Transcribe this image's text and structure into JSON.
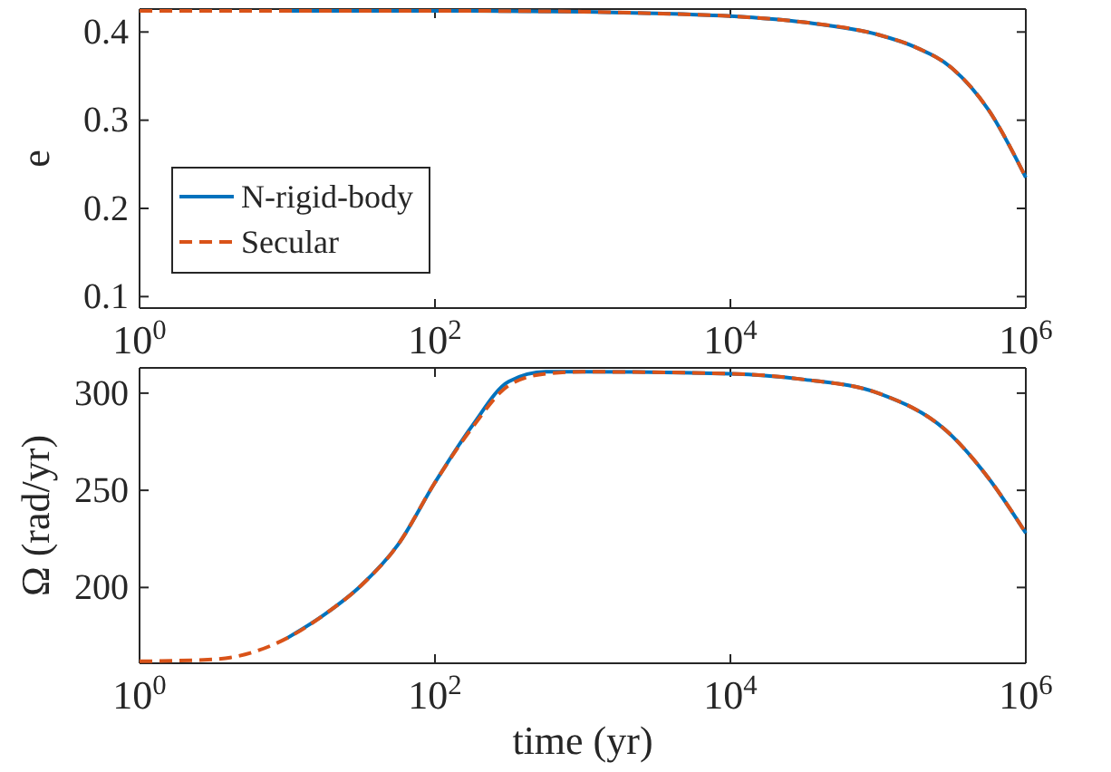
{
  "chart_data": [
    {
      "type": "line",
      "ylabel": "e",
      "log": "x",
      "xlim": [
        1,
        1000000
      ],
      "ylim": [
        0.087,
        0.426
      ],
      "xticks": [
        {
          "value": 1,
          "label": "10$^{0}$"
        },
        {
          "value": 100,
          "label": "10$^{2}$"
        },
        {
          "value": 10000,
          "label": "10$^{4}$"
        },
        {
          "value": 1000000,
          "label": "10$^{6}$"
        }
      ],
      "yticks": [
        0.1,
        0.2,
        0.3,
        0.4
      ],
      "legend": "left",
      "grid": false,
      "series": [
        {
          "name": "N-rigid-body",
          "color": "#0072bd",
          "line_style": "solid",
          "x": [
            10,
            100,
            1000,
            3162,
            10000,
            31623,
            100000,
            177828,
            316228,
            562341,
            1000000
          ],
          "values": [
            0.424,
            0.424,
            0.423,
            0.421,
            0.418,
            0.411,
            0.397,
            0.383,
            0.359,
            0.311,
            0.235
          ]
        },
        {
          "name": "Secular",
          "color": "#d95319",
          "line_style": "dashed",
          "x": [
            1,
            10,
            100,
            1000,
            3162,
            10000,
            31623,
            100000,
            177828,
            316228,
            562341,
            1000000
          ],
          "values": [
            0.424,
            0.424,
            0.424,
            0.423,
            0.421,
            0.418,
            0.411,
            0.397,
            0.383,
            0.359,
            0.311,
            0.235
          ]
        }
      ]
    },
    {
      "type": "line",
      "xlabel": "time (yr)",
      "ylabel": "Ω (rad/yr)",
      "log": "x",
      "xlim": [
        1,
        1000000
      ],
      "ylim": [
        161,
        313
      ],
      "xticks": [
        {
          "value": 1,
          "label": "10$^{0}$"
        },
        {
          "value": 100,
          "label": "10$^{2}$"
        },
        {
          "value": 10000,
          "label": "10$^{4}$"
        },
        {
          "value": 1000000,
          "label": "10$^{6}$"
        }
      ],
      "yticks": [
        200,
        250,
        300
      ],
      "grid": false,
      "legend": false,
      "series": [
        {
          "color": "#0072bd",
          "line_style": "solid",
          "x": [
            10,
            17.8,
            31.6,
            56.2,
            100,
            177.8,
            316.2,
            562.3,
            1000,
            10000,
            31623,
            100000,
            316228,
            562341,
            1000000
          ],
          "values": [
            174,
            186,
            201,
            222,
            254,
            283,
            306,
            311,
            311,
            310,
            307,
            300,
            278,
            256,
            228
          ]
        },
        {
          "color": "#d95319",
          "line_style": "dashed",
          "x": [
            1,
            3.16,
            10,
            17.8,
            31.6,
            56.2,
            100,
            177.8,
            316.2,
            562.3,
            1000,
            10000,
            31623,
            100000,
            316228,
            562341,
            1000000
          ],
          "values": [
            162,
            163,
            174,
            186,
            201,
            222,
            254,
            282,
            304,
            310,
            311,
            310,
            307,
            300,
            278,
            256,
            228
          ]
        }
      ]
    }
  ]
}
